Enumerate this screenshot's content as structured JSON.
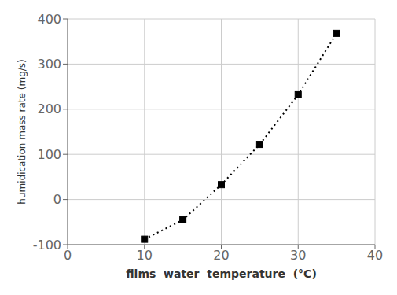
{
  "chart_data": {
    "type": "line",
    "x": [
      10,
      15,
      20,
      25,
      30,
      35
    ],
    "values": [
      -88,
      -45,
      33,
      122,
      232,
      368
    ],
    "xlim": [
      0,
      40
    ],
    "ylim": [
      -100,
      400
    ],
    "xticks": [
      0,
      10,
      20,
      30,
      40
    ],
    "yticks": [
      -100,
      0,
      100,
      200,
      300,
      400
    ],
    "xlabel": "films  water  temperature  (°C)",
    "ylabel": "humidication mass rate (mg/s)",
    "color": "black",
    "marker": "square",
    "line_style": "dotted",
    "grid": true
  }
}
